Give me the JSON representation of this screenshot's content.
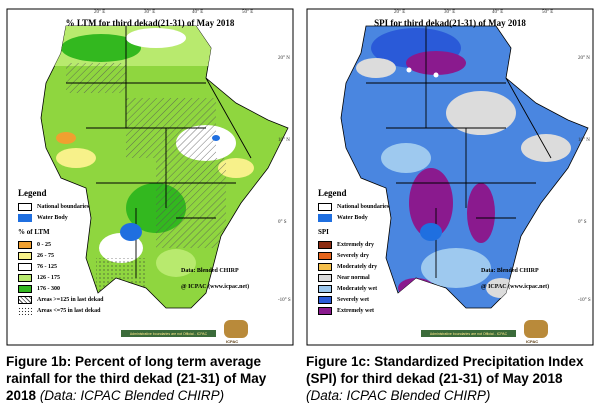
{
  "panel_ltm": {
    "title": "% LTM  for third dekad(21-31)  of May 2018",
    "legend_title": "Legend",
    "national_boundaries": "National boundaries",
    "water_body": "Water Body",
    "scale_title": "% of LTM",
    "classes": [
      {
        "label": "0 - 25",
        "color": "#f0a030"
      },
      {
        "label": "26 - 75",
        "color": "#f7f18a"
      },
      {
        "label": "76 - 125",
        "color": "#ffffff"
      },
      {
        "label": "126 - 175",
        "color": "#b8ea6e"
      },
      {
        "label": "176 - 300",
        "color": "#33b81f"
      }
    ],
    "hatch_note": "Areas >=125 in last dekad",
    "dot_note": "Areas <=75 in last dekad",
    "data_note": "Data: Blended CHIRP",
    "credit": "@ ICPAC (www.icpac.net)",
    "footer_text": "Administrative boundaries are not Official - ICPAC",
    "logo_text": "ICPAC"
  },
  "panel_spi": {
    "title": "SPI  for third dekad(21-31)  of May 2018",
    "legend_title": "Legend",
    "national_boundaries": "National boundaries",
    "water_body": "Water Body",
    "scale_title": "SPI",
    "classes": [
      {
        "label": "Extremely dry",
        "color": "#8b2c12"
      },
      {
        "label": "Severely dry",
        "color": "#e4641c"
      },
      {
        "label": "Moderately dry",
        "color": "#f6c04c"
      },
      {
        "label": "Near normal",
        "color": "#dcdcdc"
      },
      {
        "label": "Moderately wet",
        "color": "#9ec9ef"
      },
      {
        "label": "Severely wet",
        "color": "#2a5ad8"
      },
      {
        "label": "Extremely wet",
        "color": "#8a1a8e"
      }
    ],
    "data_note": "Data: Blended CHIRP",
    "credit": "@ ICPAC (www.icpac.net)",
    "footer_text": "Administrative boundaries are not Official - ICPAC",
    "logo_text": "ICPAC"
  },
  "longitude_ticks": [
    "20° E",
    "30° E",
    "40° E",
    "50° E"
  ],
  "latitude_ticks": [
    "20° N",
    "10° N",
    "0° S",
    "-10° S"
  ],
  "captions": {
    "left_bold": "Figure 1b: Percent of long term average rainfall for the third dekad (21-31) of May 2018",
    "left_italic": "(Data: ICPAC Blended CHIRP)",
    "right_bold": "Figure 1c: Standardized Precipitation Index (SPI) for third dekad (21-31)  of May 2018",
    "right_italic": "(Data: ICPAC Blended CHIRP)"
  },
  "colors": {
    "ocean_frame": "#ffffff",
    "land_green": "#8fd63f",
    "land_blue": "#4a86e0",
    "water": "#1f6fe0",
    "boundary": "#000000"
  }
}
